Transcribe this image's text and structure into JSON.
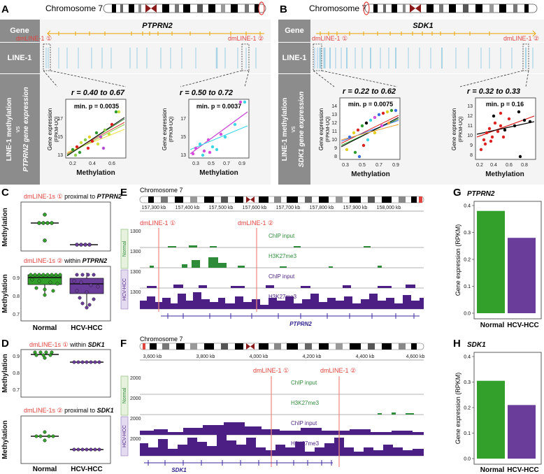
{
  "panel_letters": {
    "A": "A",
    "B": "B",
    "C": "C",
    "D": "D",
    "E": "E",
    "F": "F",
    "G": "G",
    "H": "H"
  },
  "colors": {
    "normal": "#33a02c",
    "hcc": "#6a3d9a",
    "red": "#e0443f",
    "track_purple": "#4b1f83",
    "track_green": "#2e8b3a",
    "line1_blue": "#a9d4e6",
    "gray_panel": "#8c8c8c"
  },
  "panel_A": {
    "chromosome": "Chromosome 7",
    "gene_name": "PTPRN2",
    "row_gene": "Gene",
    "row_line1": "LINE-1",
    "side_label_1": "LINE-1 methylation",
    "side_label_2": "vs",
    "side_label_3": "PTPRN2 gene expression",
    "dm1": "dmLINE-1 ①",
    "dm2": "dmLINE-1 ②",
    "scatter1": {
      "r": "r = 0.40 to 0.67",
      "p": "min. p = 0.0035",
      "ylabel1": "Gene expression",
      "ylabel2": "(FPKM-UQ)",
      "xticks": [
        "0.2",
        "0.4",
        "0.6"
      ],
      "yticks": [
        "13",
        "15",
        "17"
      ]
    },
    "scatter2": {
      "r": "r = 0.50 to 0.72",
      "p": "min. p = 0.0037",
      "ylabel1": "Gene expression",
      "ylabel2": "(FPKM-UQ)",
      "xticks": [
        "0.3",
        "0.5",
        "0.7",
        "0.9"
      ],
      "yticks": [
        "13",
        "15",
        "17"
      ]
    },
    "xlabel": "Methylation"
  },
  "panel_B": {
    "chromosome": "Chromosome 7",
    "gene_name": "SDK1",
    "row_gene": "Gene",
    "row_line1": "LINE-1",
    "side_label_1": "LINE-1 methylation",
    "side_label_2": "vs",
    "side_label_3": "SDK1 gene expression",
    "dm1": "dmLINE-1 ①",
    "dm2": "dmLINE-1 ②",
    "scatter1": {
      "r": "r = 0.22 to 0.62",
      "p": "min. p = 0.0075",
      "ylabel1": "Gene expression",
      "ylabel2": "(FPKM-UQ)",
      "xticks": [
        "0.3",
        "0.5",
        "0.7",
        "0.9"
      ],
      "yticks": [
        "8",
        "9",
        "10",
        "11",
        "12",
        "13",
        "14"
      ]
    },
    "scatter2": {
      "r": "r = 0.32 to 0.33",
      "p": "min. p = 0.16",
      "ylabel1": "Gene expression",
      "ylabel2": "(FPKM-UQ)",
      "xticks": [
        "0.2",
        "0.4",
        "0.6",
        "0.8"
      ],
      "yticks": [
        "8",
        "9",
        "10",
        "11",
        "12",
        "13"
      ]
    },
    "xlabel": "Methylation"
  },
  "panel_C": {
    "top_title_a": "dmLINE-1s ①",
    "top_title_b": " proximal to ",
    "top_title_c": "PTPRN2",
    "bot_title_a": "dmLINE-1s ②",
    "bot_title_b": " within ",
    "bot_title_c": "PTPRN2",
    "ylabel": "Methylation",
    "yticks_bot": [
      "0.9",
      "0.8",
      "0.7"
    ],
    "xcats": [
      "Normal",
      "HCV-HCC"
    ]
  },
  "panel_D": {
    "top_title_a": "dmLINE-1s ①",
    "top_title_b": " within ",
    "top_title_c": "SDK1",
    "bot_title_a": "dmLINE-1s ②",
    "bot_title_b": " proximal to ",
    "bot_title_c": "SDK1",
    "ylabel": "Methylation",
    "yticks_top": [
      "0.9",
      "0.8",
      "0.7"
    ],
    "xcats": [
      "Normal",
      "HCV-HCC"
    ]
  },
  "panel_E": {
    "chromosome": "Chromosome 7",
    "coords": [
      "157,300 kb",
      "157,400 kb",
      "157,500 kb",
      "157,600 kb",
      "157,700 kb",
      "157,800 kb",
      "157,900 kb",
      "158,000 kb"
    ],
    "dm1": "dmLINE-1 ①",
    "dm2": "dmLINE-1 ②",
    "tracks": [
      {
        "label": "ChIP input",
        "scale": "1300"
      },
      {
        "label": "H3K27me3",
        "scale": "1300"
      },
      {
        "label": "ChIP input",
        "scale": "1300"
      },
      {
        "label": "H3K27me3",
        "scale": "1300"
      }
    ],
    "group_normal": "Normal",
    "group_hcc": "HCV-HCC",
    "gene": "PTPRN2"
  },
  "panel_F": {
    "chromosome": "Chromosome 7",
    "coords": [
      "3,600 kb",
      "3,800 kb",
      "4,000 kb",
      "4,200 kb",
      "4,400 kb",
      "4,600 kb"
    ],
    "dm1": "dmLINE-1 ①",
    "dm2": "dmLINE-1 ②",
    "tracks": [
      {
        "label": "ChIP input",
        "scale": "2000"
      },
      {
        "label": "H3K27me3",
        "scale": "2000"
      },
      {
        "label": "ChIP input",
        "scale": "2000"
      },
      {
        "label": "H3K27me3",
        "scale": "2000"
      }
    ],
    "group_normal": "Normal",
    "group_hcc": "HCV-HCC",
    "gene": "SDK1"
  },
  "chart_data": [
    {
      "type": "bar",
      "panel": "G",
      "title": "PTPRN2",
      "categories": [
        "Normal",
        "HCV-HCC"
      ],
      "values": [
        0.38,
        0.28
      ],
      "ylabel": "Gene expression (RPKM)",
      "ylim": [
        0,
        0.4
      ],
      "yticks": [
        "0.0",
        "0.1",
        "0.2",
        "0.3",
        "0.4"
      ]
    },
    {
      "type": "bar",
      "panel": "H",
      "title": "SDK1",
      "categories": [
        "Normal",
        "HCV-HCC"
      ],
      "values": [
        0.305,
        0.21
      ],
      "ylabel": "Gene expression (RPKM)",
      "ylim": [
        0,
        0.4
      ],
      "yticks": [
        "0.0",
        "0.1",
        "0.2",
        "0.3",
        "0.4"
      ]
    }
  ]
}
